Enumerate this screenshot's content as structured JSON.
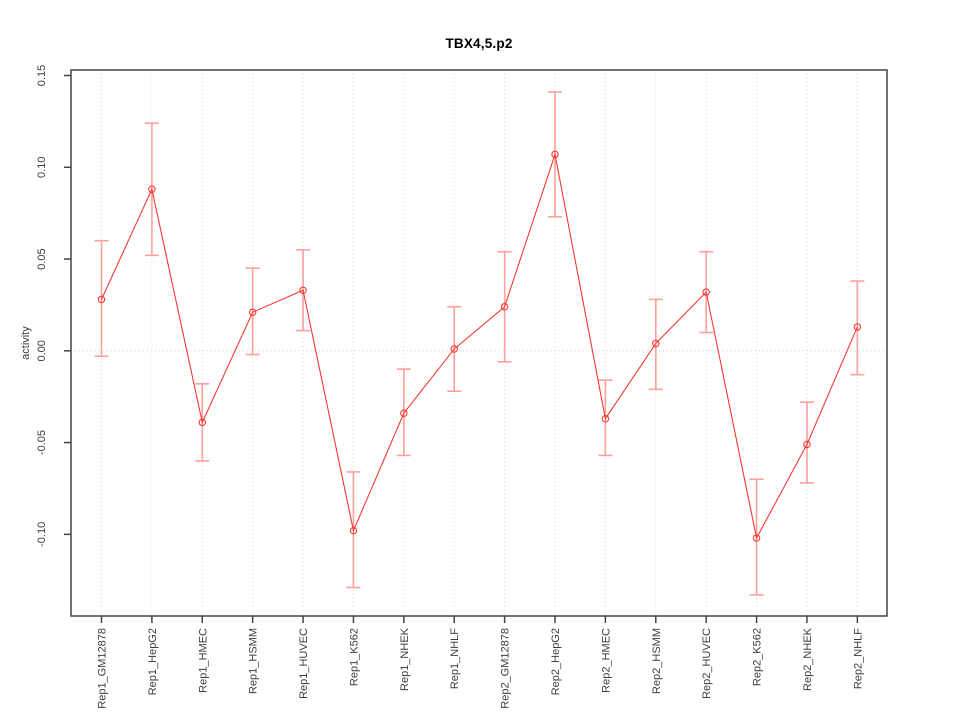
{
  "title": "TBX4,5.p2",
  "chart_data": {
    "type": "line",
    "title": "TBX4,5.p2",
    "xlabel": "",
    "ylabel": "activity",
    "marker": "open-circle",
    "legend_position": "none",
    "grid": {
      "vertical": "dotted line at every category",
      "horizontal": "dotted line at zero only"
    },
    "categories": [
      "Rep1_GM12878",
      "Rep1_HepG2",
      "Rep1_HMEC",
      "Rep1_HSMM",
      "Rep1_HUVEC",
      "Rep1_K562",
      "Rep1_NHEK",
      "Rep1_NHLF",
      "Rep2_GM12878",
      "Rep2_HepG2",
      "Rep2_HMEC",
      "Rep2_HSMM",
      "Rep2_HUVEC",
      "Rep2_K562",
      "Rep2_NHEK",
      "Rep2_NHLF"
    ],
    "series": [
      {
        "name": "activity",
        "values": [
          0.028,
          0.088,
          -0.039,
          0.021,
          0.033,
          -0.098,
          -0.034,
          0.001,
          0.024,
          0.107,
          -0.037,
          0.004,
          0.032,
          -0.102,
          -0.051,
          0.013
        ],
        "upper": [
          0.06,
          0.124,
          -0.018,
          0.045,
          0.055,
          -0.066,
          -0.01,
          0.024,
          0.054,
          0.141,
          -0.016,
          0.028,
          0.054,
          -0.07,
          -0.028,
          0.038
        ],
        "lower": [
          -0.003,
          0.052,
          -0.06,
          -0.002,
          0.011,
          -0.129,
          -0.057,
          -0.022,
          -0.006,
          0.073,
          -0.057,
          -0.021,
          0.01,
          -0.133,
          -0.072,
          -0.013
        ]
      }
    ],
    "ylim": [
      -0.1445,
      0.153
    ],
    "yticks": [
      0.15,
      0.1,
      0.05,
      0.0,
      -0.05,
      -0.1
    ],
    "ytick_labels": [
      "0.15",
      "0.10",
      "0.05",
      "0.00",
      "-0.05",
      "-0.10"
    ],
    "colors": {
      "line": "#f43b33",
      "point": "#f43b33",
      "error_bar": "#ff9f9e",
      "grid": "#d6d6d6",
      "zero_line": "#d6d6d6",
      "axis": "#434343",
      "tick_text": "#3d3d3d",
      "title_text": "#000000",
      "background": "#ffffff"
    }
  }
}
